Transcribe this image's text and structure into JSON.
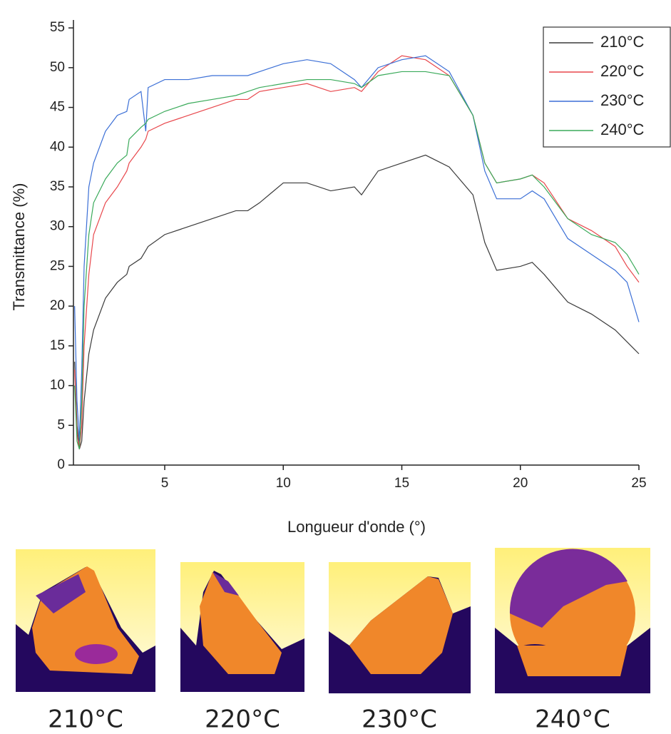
{
  "chart_data": {
    "type": "line",
    "x_label": "Longueur d'onde (°)",
    "y_label": "Transmittance (%)",
    "x": [
      1.2,
      1.3,
      1.4,
      1.5,
      1.6,
      1.8,
      2,
      2.5,
      3,
      3.4,
      3.5,
      4,
      4.2,
      4.3,
      5,
      6,
      7,
      8,
      8.5,
      9,
      10,
      11,
      12,
      13,
      13.3,
      14,
      15,
      16,
      17,
      18,
      18.5,
      19,
      20,
      20.5,
      21,
      22,
      23,
      24,
      24.5,
      25
    ],
    "series": [
      {
        "name": "210°C",
        "color": "#3a3a3a",
        "values": [
          13,
          5,
          2,
          3,
          8,
          14,
          17,
          21,
          23,
          24,
          25,
          26,
          27,
          27.5,
          29,
          30,
          31,
          32,
          32,
          33,
          35.5,
          35.5,
          34.5,
          35,
          34,
          37,
          38,
          39,
          37.5,
          34,
          28,
          24.5,
          25,
          25.5,
          24,
          20.5,
          19,
          17,
          15.5,
          14
        ]
      },
      {
        "name": "220°C",
        "color": "#e8474c",
        "values": [
          12,
          4,
          2,
          5,
          15,
          24,
          29,
          33,
          35,
          37,
          38,
          40,
          41,
          42,
          43,
          44,
          45,
          46,
          46,
          47,
          47.5,
          48,
          47,
          47.5,
          47,
          49.5,
          51.5,
          51,
          49,
          44,
          38,
          35.5,
          36,
          36.5,
          35.5,
          31,
          29.5,
          27.5,
          25,
          23
        ]
      },
      {
        "name": "230°C",
        "color": "#3b6fd6",
        "values": [
          20,
          8,
          3,
          12,
          25,
          35,
          38,
          42,
          44,
          44.5,
          46,
          47,
          42,
          47.5,
          48.5,
          48.5,
          49,
          49,
          49,
          49.5,
          50.5,
          51,
          50.5,
          48.5,
          47.5,
          50,
          51,
          51.5,
          49.5,
          44,
          37,
          33.5,
          33.5,
          34.5,
          33.5,
          28.5,
          26.5,
          24.5,
          23,
          18
        ]
      },
      {
        "name": "240°C",
        "color": "#3aaa5a",
        "values": [
          10,
          3,
          2,
          8,
          20,
          29,
          33,
          36,
          38,
          39,
          41,
          42.5,
          43,
          43.5,
          44.5,
          45.5,
          46,
          46.5,
          47,
          47.5,
          48,
          48.5,
          48.5,
          48,
          47.5,
          49,
          49.5,
          49.5,
          49,
          44,
          38,
          35.5,
          36,
          36.5,
          35,
          31,
          29,
          28,
          26.5,
          24
        ]
      }
    ],
    "xlim": [
      1.15,
      25
    ],
    "ylim": [
      0,
      56
    ],
    "xticks": [
      5,
      10,
      15,
      20,
      25
    ],
    "yticks": [
      0,
      5,
      10,
      15,
      20,
      25,
      30,
      35,
      40,
      45,
      50,
      55
    ],
    "legend": "upper right"
  },
  "images": [
    {
      "caption": "210°C"
    },
    {
      "caption": "220°C"
    },
    {
      "caption": "230°C"
    },
    {
      "caption": "240°C"
    }
  ]
}
